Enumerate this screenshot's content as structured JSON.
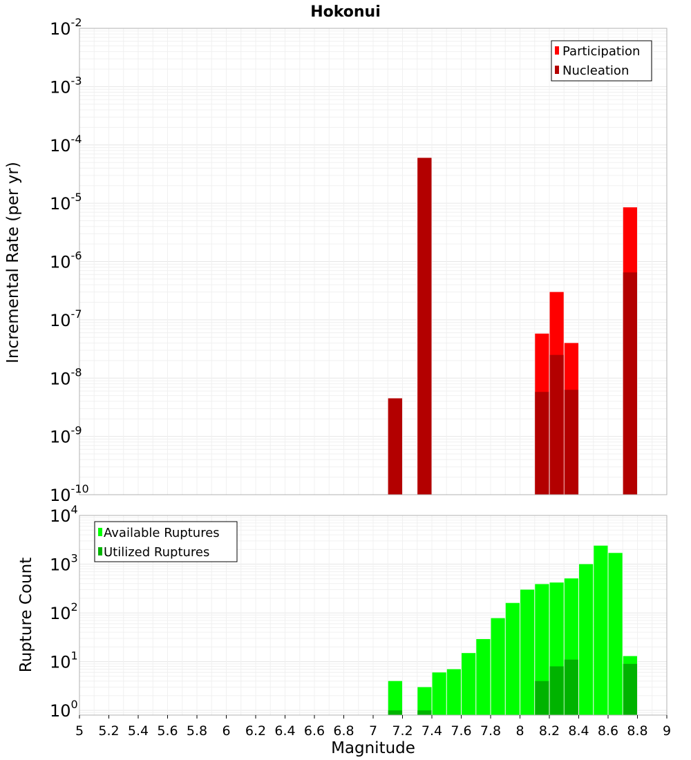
{
  "chart_data": [
    {
      "type": "bar",
      "title": "Hokonui",
      "xlabel": "",
      "ylabel": "Incremental Rate (per yr)",
      "yscale": "log",
      "ylim": [
        1e-10,
        0.01
      ],
      "xlim": [
        5,
        9
      ],
      "grid": true,
      "legend_position": "top-right",
      "ytick_exponents": [
        "-10",
        "-9",
        "-8",
        "-7",
        "-6",
        "-5",
        "-4",
        "-3",
        "-2"
      ],
      "bar_width": 0.095,
      "x": [
        7.15,
        7.35,
        8.15,
        8.25,
        8.35,
        8.75
      ],
      "series": [
        {
          "name": "Participation",
          "color": "#ff0000",
          "values": [
            4.5e-09,
            6e-05,
            5.8e-08,
            3e-07,
            4e-08,
            8.5e-06
          ]
        },
        {
          "name": "Nucleation",
          "color": "#b30000",
          "values": [
            4.5e-09,
            6e-05,
            5.8e-09,
            2.5e-08,
            6.3e-09,
            6.5e-07
          ]
        }
      ]
    },
    {
      "type": "bar",
      "title": "",
      "xlabel": "Magnitude",
      "ylabel": "Rupture Count",
      "yscale": "log",
      "ylim": [
        0.8,
        10000
      ],
      "xlim": [
        5,
        9
      ],
      "grid": true,
      "legend_position": "top-left",
      "ytick_exponents": [
        "0",
        "1",
        "2",
        "3",
        "4"
      ],
      "xticks": [
        "5",
        "5.2",
        "5.4",
        "5.6",
        "5.8",
        "6",
        "6.2",
        "6.4",
        "6.6",
        "6.8",
        "7",
        "7.2",
        "7.4",
        "7.6",
        "7.8",
        "8",
        "8.2",
        "8.4",
        "8.6",
        "8.8",
        "9"
      ],
      "bar_width": 0.095,
      "x": [
        7.15,
        7.35,
        7.45,
        7.55,
        7.65,
        7.75,
        7.85,
        7.95,
        8.05,
        8.15,
        8.25,
        8.35,
        8.45,
        8.55,
        8.65,
        8.75
      ],
      "series": [
        {
          "name": "Available Ruptures",
          "color": "#00ff00",
          "values": [
            4,
            3,
            6,
            7,
            15,
            29,
            78,
            160,
            300,
            390,
            420,
            510,
            1000,
            2400,
            1700,
            13
          ]
        },
        {
          "name": "Utilized Ruptures",
          "color": "#00b300",
          "values": [
            1,
            1,
            0,
            0,
            0,
            0,
            0,
            0,
            0,
            4,
            8,
            11,
            0,
            0,
            0,
            9
          ]
        }
      ]
    }
  ]
}
